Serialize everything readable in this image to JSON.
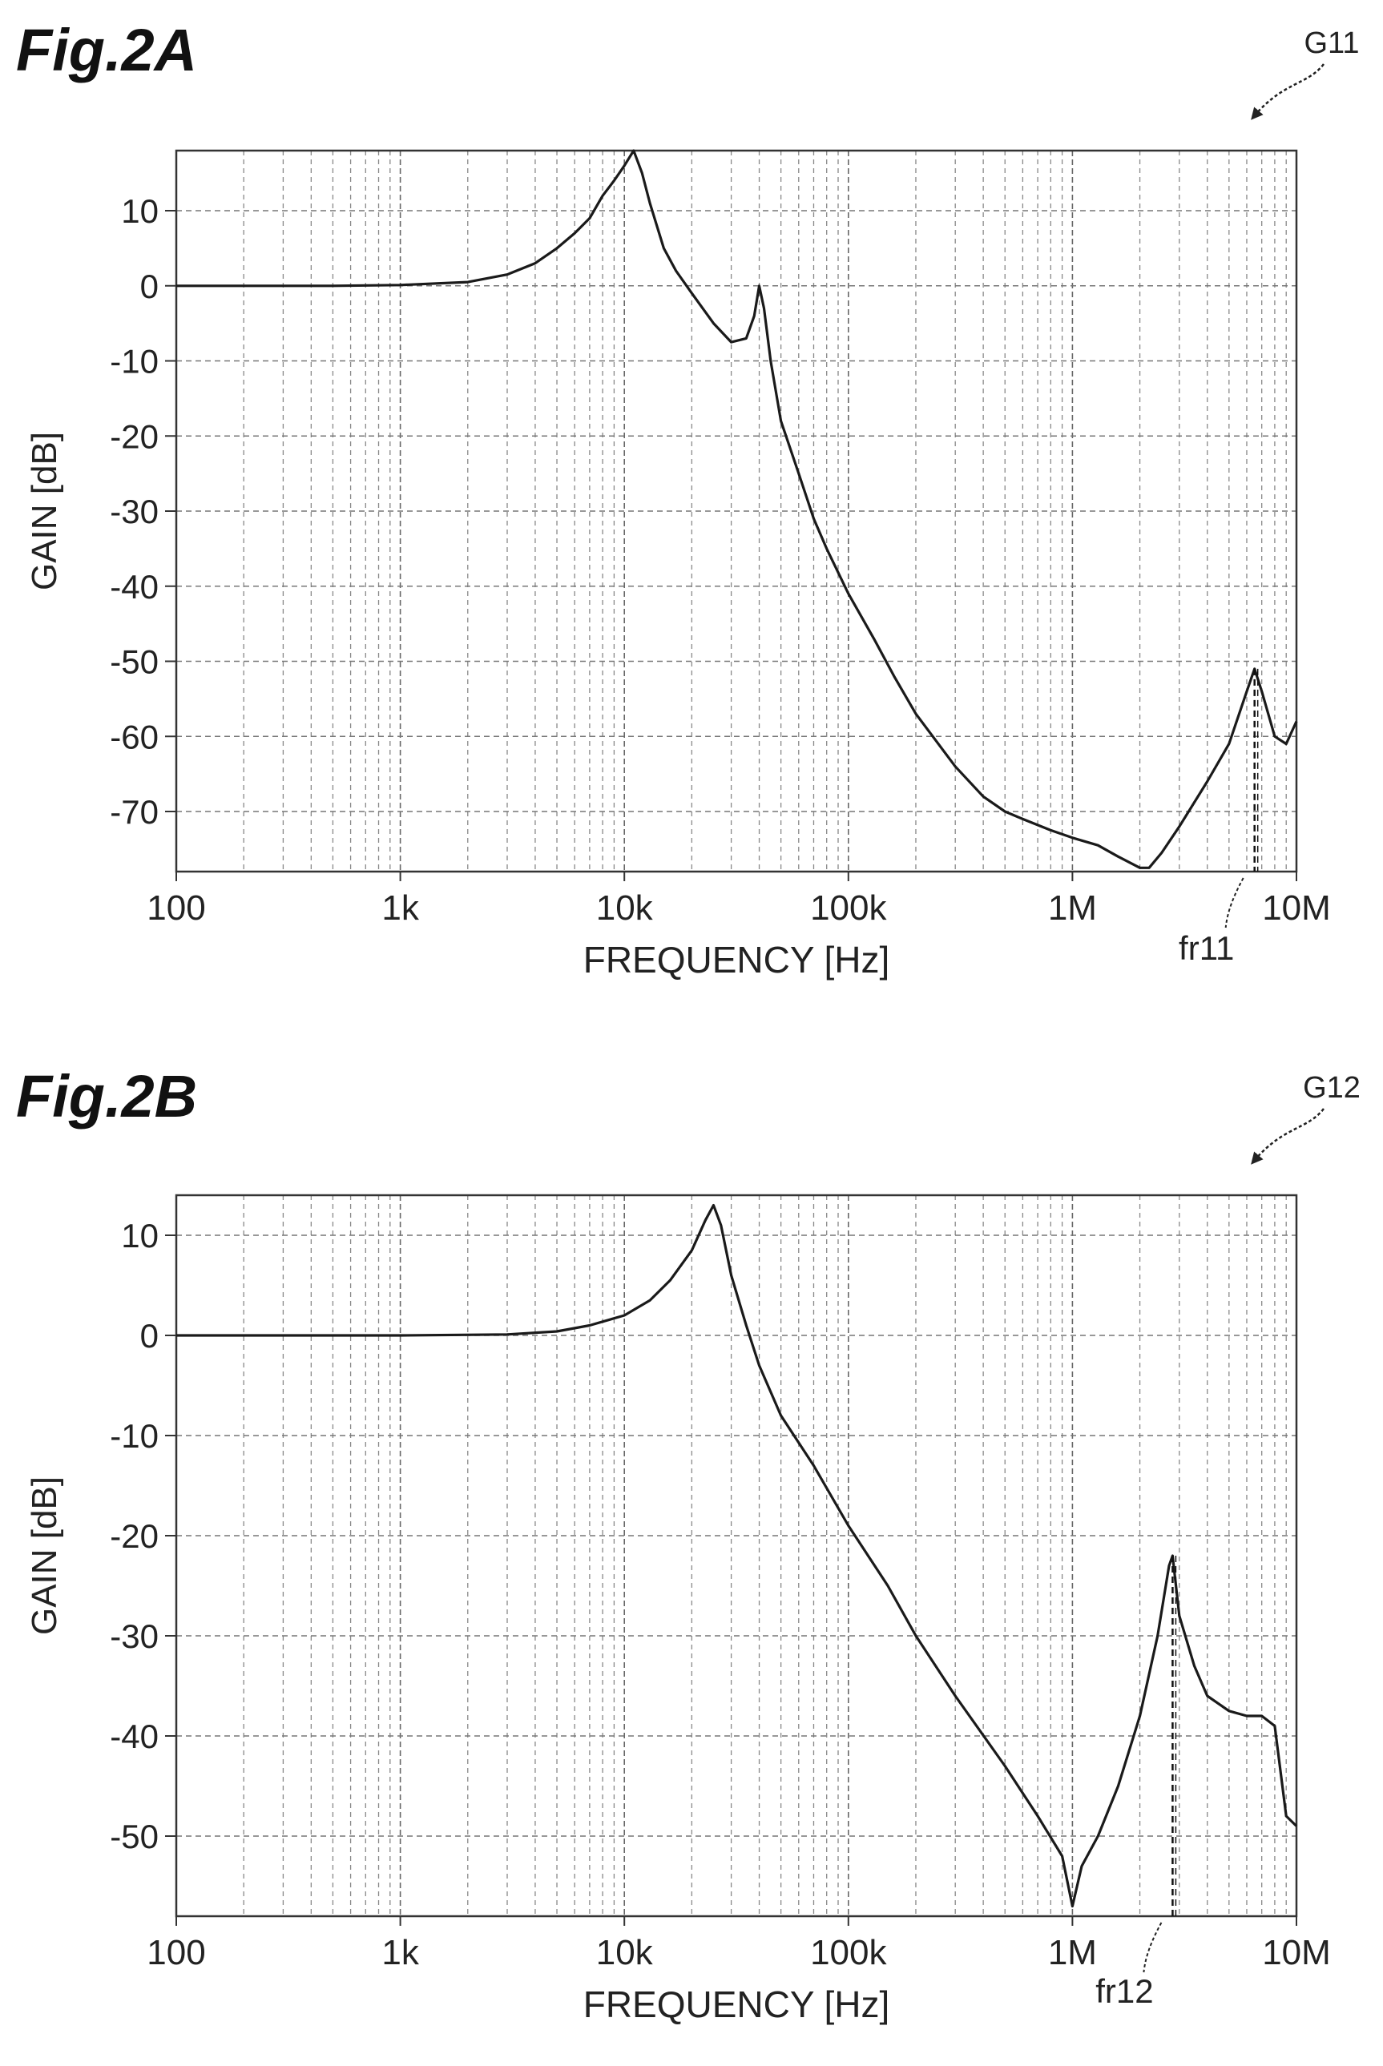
{
  "figures": [
    {
      "id": "fig-2a",
      "title": "Fig.2A",
      "graph_ref": "G11",
      "marker_label": "fr11"
    },
    {
      "id": "fig-2b",
      "title": "Fig.2B",
      "graph_ref": "G12",
      "marker_label": "fr12"
    }
  ],
  "chart_data": [
    {
      "type": "line",
      "title": "",
      "xlabel": "FREQUENCY [Hz]",
      "ylabel": "GAIN [dB]",
      "xscale": "log",
      "xlim": [
        100,
        10000000
      ],
      "ylim": [
        -78,
        18
      ],
      "xticks": [
        100,
        1000,
        10000,
        100000,
        1000000,
        10000000
      ],
      "xtick_labels": [
        "100",
        "1k",
        "10k",
        "100k",
        "1M",
        "10M"
      ],
      "yticks": [
        10,
        0,
        -10,
        -20,
        -30,
        -40,
        -50,
        -60,
        -70
      ],
      "ytick_labels": [
        "10",
        "0",
        "-10",
        "-20",
        "-30",
        "-40",
        "-50",
        "-60",
        "-70"
      ],
      "grid": true,
      "marker": {
        "label": "fr11",
        "x": 6500000
      },
      "series": [
        {
          "x": [
            100,
            200,
            500,
            1000,
            2000,
            3000,
            4000,
            5000,
            6000,
            7000,
            8000,
            9000,
            10000,
            11000,
            12000,
            13000,
            15000,
            17000,
            20000,
            25000,
            30000,
            35000,
            38000,
            40000,
            42000,
            45000,
            50000,
            60000,
            70000,
            80000,
            100000,
            130000,
            160000,
            200000,
            300000,
            400000,
            500000,
            600000,
            800000,
            1000000,
            1300000,
            1600000,
            2000000,
            2200000,
            2500000,
            3000000,
            4000000,
            5000000,
            6000000,
            6500000,
            7000000,
            8000000,
            9000000,
            10000000
          ],
          "values": [
            0,
            0,
            0,
            0.1,
            0.5,
            1.5,
            3,
            5,
            7,
            9,
            12,
            14,
            16,
            18,
            15,
            11,
            5,
            2,
            -1,
            -5,
            -7.5,
            -7,
            -4,
            0,
            -3,
            -10,
            -18,
            -25,
            -31,
            -35,
            -41,
            -47,
            -52,
            -57,
            -64,
            -68,
            -70,
            -71,
            -72.5,
            -73.5,
            -74.5,
            -76,
            -77.5,
            -77.5,
            -75.5,
            -72,
            -66,
            -61,
            -54,
            -51,
            -54,
            -60,
            -61,
            -58
          ]
        }
      ]
    },
    {
      "type": "line",
      "title": "",
      "xlabel": "FREQUENCY [Hz]",
      "ylabel": "GAIN [dB]",
      "xscale": "log",
      "xlim": [
        100,
        10000000
      ],
      "ylim": [
        -58,
        14
      ],
      "xticks": [
        100,
        1000,
        10000,
        100000,
        1000000,
        10000000
      ],
      "xtick_labels": [
        "100",
        "1k",
        "10k",
        "100k",
        "1M",
        "10M"
      ],
      "yticks": [
        10,
        0,
        -10,
        -20,
        -30,
        -40,
        -50
      ],
      "ytick_labels": [
        "10",
        "0",
        "-10",
        "-20",
        "-30",
        "-40",
        "-50"
      ],
      "grid": true,
      "marker": {
        "label": "fr12",
        "x": 2800000
      },
      "series": [
        {
          "x": [
            100,
            500,
            1000,
            3000,
            5000,
            7000,
            10000,
            13000,
            16000,
            20000,
            23000,
            25000,
            27000,
            30000,
            35000,
            40000,
            50000,
            70000,
            100000,
            150000,
            200000,
            300000,
            500000,
            700000,
            900000,
            1000000,
            1100000,
            1300000,
            1600000,
            2000000,
            2400000,
            2700000,
            2800000,
            3000000,
            3500000,
            4000000,
            5000000,
            6000000,
            7000000,
            8000000,
            9000000,
            10000000
          ],
          "values": [
            0,
            0,
            0,
            0.1,
            0.4,
            1,
            2,
            3.5,
            5.5,
            8.5,
            11.5,
            13,
            11,
            6,
            1,
            -3,
            -8,
            -13,
            -19,
            -25,
            -30,
            -36,
            -43,
            -48,
            -52,
            -57,
            -53,
            -50,
            -45,
            -38,
            -30,
            -23,
            -22,
            -28,
            -33,
            -36,
            -37.5,
            -38,
            -38,
            -39,
            -48,
            -49
          ]
        }
      ]
    }
  ]
}
